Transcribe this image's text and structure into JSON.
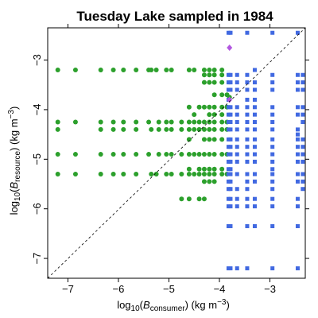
{
  "chart_data": {
    "type": "scatter",
    "title": "Tuesday Lake sampled in 1984",
    "xlabel": {
      "pre": "log",
      "base": "10",
      "open": "(",
      "var": "B",
      "sub": "consumer",
      "close": ")",
      "units": " (kg m",
      "exp": "−3",
      "end": ")"
    },
    "ylabel": {
      "pre": "log",
      "base": "10",
      "open": "(",
      "var": "B",
      "sub": "resource",
      "close": ")",
      "units": " (kg m",
      "exp": "−3",
      "end": ")"
    },
    "xlim": [
      -7.4,
      -2.3
    ],
    "ylim": [
      -7.4,
      -2.35
    ],
    "xticks": [
      -7,
      -6,
      -5,
      -4,
      -3
    ],
    "yticks": [
      -7,
      -6,
      -5,
      -4,
      -3
    ],
    "reference_line": "y = x (dashed)",
    "grid": false,
    "colors": {
      "green": "#2ca02c",
      "blue": "#4169e1",
      "purple": "#b257e0"
    },
    "series": [
      {
        "color": "green",
        "marker": "circle",
        "points": [
          [
            -7.2,
            -3.2
          ],
          [
            -7.2,
            -4.25
          ],
          [
            -7.2,
            -4.4
          ],
          [
            -7.2,
            -4.9
          ],
          [
            -7.2,
            -5.3
          ],
          [
            -6.85,
            -3.2
          ],
          [
            -6.85,
            -4.25
          ],
          [
            -6.85,
            -4.9
          ],
          [
            -6.85,
            -5.3
          ],
          [
            -6.35,
            -3.2
          ],
          [
            -6.35,
            -4.25
          ],
          [
            -6.35,
            -4.4
          ],
          [
            -6.35,
            -4.9
          ],
          [
            -6.35,
            -5.3
          ],
          [
            -6.1,
            -3.2
          ],
          [
            -6.1,
            -4.25
          ],
          [
            -6.1,
            -4.4
          ],
          [
            -6.1,
            -4.9
          ],
          [
            -6.1,
            -5.3
          ],
          [
            -5.9,
            -3.2
          ],
          [
            -5.9,
            -4.25
          ],
          [
            -5.9,
            -4.4
          ],
          [
            -5.9,
            -4.9
          ],
          [
            -5.9,
            -5.3
          ],
          [
            -5.65,
            -3.2
          ],
          [
            -5.65,
            -4.25
          ],
          [
            -5.65,
            -4.4
          ],
          [
            -5.65,
            -4.9
          ],
          [
            -5.65,
            -5.3
          ],
          [
            -5.4,
            -3.2
          ],
          [
            -5.35,
            -3.2
          ],
          [
            -5.4,
            -4.25
          ],
          [
            -5.35,
            -4.4
          ],
          [
            -5.4,
            -4.9
          ],
          [
            -5.35,
            -5.3
          ],
          [
            -5.25,
            -3.2
          ],
          [
            -5.2,
            -4.25
          ],
          [
            -5.2,
            -4.4
          ],
          [
            -5.2,
            -4.9
          ],
          [
            -5.25,
            -5.3
          ],
          [
            -5.05,
            -3.2
          ],
          [
            -5.05,
            -4.25
          ],
          [
            -5.05,
            -4.4
          ],
          [
            -5.05,
            -4.9
          ],
          [
            -5.05,
            -5.3
          ],
          [
            -4.95,
            -3.2
          ],
          [
            -4.95,
            -4.25
          ],
          [
            -4.95,
            -4.4
          ],
          [
            -4.95,
            -4.9
          ],
          [
            -4.95,
            -5.3
          ],
          [
            -4.75,
            -4.25
          ],
          [
            -4.75,
            -4.4
          ],
          [
            -4.75,
            -4.9
          ],
          [
            -4.75,
            -5.3
          ],
          [
            -4.75,
            -5.8
          ],
          [
            -4.6,
            -3.2
          ],
          [
            -4.6,
            -3.95
          ],
          [
            -4.6,
            -4.25
          ],
          [
            -4.6,
            -4.4
          ],
          [
            -4.6,
            -4.6
          ],
          [
            -4.6,
            -4.9
          ],
          [
            -4.6,
            -5.2
          ],
          [
            -4.6,
            -5.3
          ],
          [
            -4.6,
            -5.8
          ],
          [
            -4.5,
            -3.2
          ],
          [
            -4.5,
            -4.1
          ],
          [
            -4.5,
            -4.25
          ],
          [
            -4.5,
            -4.4
          ],
          [
            -4.5,
            -4.9
          ],
          [
            -4.5,
            -5.3
          ],
          [
            -4.4,
            -3.95
          ],
          [
            -4.4,
            -4.25
          ],
          [
            -4.4,
            -4.4
          ],
          [
            -4.4,
            -4.9
          ],
          [
            -4.4,
            -5.2
          ],
          [
            -4.4,
            -5.3
          ],
          [
            -4.4,
            -5.8
          ],
          [
            -4.3,
            -3.2
          ],
          [
            -4.3,
            -3.3
          ],
          [
            -4.3,
            -3.45
          ],
          [
            -4.3,
            -3.95
          ],
          [
            -4.3,
            -4.25
          ],
          [
            -4.3,
            -4.4
          ],
          [
            -4.3,
            -4.6
          ],
          [
            -4.3,
            -4.9
          ],
          [
            -4.3,
            -5.2
          ],
          [
            -4.3,
            -5.3
          ],
          [
            -4.3,
            -5.45
          ],
          [
            -4.3,
            -5.8
          ],
          [
            -4.2,
            -3.2
          ],
          [
            -4.2,
            -3.3
          ],
          [
            -4.2,
            -3.45
          ],
          [
            -4.2,
            -3.95
          ],
          [
            -4.2,
            -4.1
          ],
          [
            -4.2,
            -4.25
          ],
          [
            -4.2,
            -4.4
          ],
          [
            -4.2,
            -4.6
          ],
          [
            -4.2,
            -4.9
          ],
          [
            -4.2,
            -5.2
          ],
          [
            -4.2,
            -5.3
          ],
          [
            -4.2,
            -5.45
          ],
          [
            -4.1,
            -3.2
          ],
          [
            -4.1,
            -3.3
          ],
          [
            -4.1,
            -3.45
          ],
          [
            -4.1,
            -3.7
          ],
          [
            -4.1,
            -3.95
          ],
          [
            -4.1,
            -4.1
          ],
          [
            -4.1,
            -4.25
          ],
          [
            -4.1,
            -4.4
          ],
          [
            -4.1,
            -4.6
          ],
          [
            -4.1,
            -4.9
          ],
          [
            -4.1,
            -5.2
          ],
          [
            -4.1,
            -5.3
          ],
          [
            -4.1,
            -5.45
          ],
          [
            -3.95,
            -3.2
          ],
          [
            -3.95,
            -3.3
          ],
          [
            -3.95,
            -3.45
          ],
          [
            -3.95,
            -3.7
          ],
          [
            -3.95,
            -3.95
          ],
          [
            -3.95,
            -4.1
          ],
          [
            -3.95,
            -4.25
          ],
          [
            -3.95,
            -4.4
          ],
          [
            -3.95,
            -4.6
          ],
          [
            -3.95,
            -4.9
          ],
          [
            -3.95,
            -5.2
          ],
          [
            -3.95,
            -5.3
          ],
          [
            -3.85,
            -3.7
          ],
          [
            -3.85,
            -3.95
          ],
          [
            -3.85,
            -4.25
          ],
          [
            -3.85,
            -4.4
          ],
          [
            -3.85,
            -4.9
          ],
          [
            -3.85,
            -5.3
          ],
          [
            -3.8,
            -3.75
          ]
        ]
      },
      {
        "color": "blue",
        "marker": "square",
        "points": [
          [
            -3.82,
            -2.45
          ],
          [
            -3.82,
            -3.3
          ],
          [
            -3.82,
            -3.45
          ],
          [
            -3.82,
            -3.6
          ],
          [
            -3.82,
            -3.8
          ],
          [
            -3.82,
            -3.95
          ],
          [
            -3.82,
            -4.1
          ],
          [
            -3.82,
            -4.25
          ],
          [
            -3.82,
            -4.4
          ],
          [
            -3.82,
            -4.6
          ],
          [
            -3.82,
            -4.75
          ],
          [
            -3.82,
            -4.9
          ],
          [
            -3.82,
            -5.05
          ],
          [
            -3.82,
            -5.2
          ],
          [
            -3.82,
            -5.3
          ],
          [
            -3.82,
            -5.45
          ],
          [
            -3.82,
            -5.6
          ],
          [
            -3.82,
            -5.8
          ],
          [
            -3.82,
            -5.95
          ],
          [
            -3.82,
            -6.35
          ],
          [
            -3.82,
            -7.2
          ],
          [
            -3.78,
            -2.45
          ],
          [
            -3.78,
            -3.3
          ],
          [
            -3.78,
            -3.45
          ],
          [
            -3.78,
            -3.6
          ],
          [
            -3.78,
            -3.95
          ],
          [
            -3.78,
            -4.1
          ],
          [
            -3.78,
            -4.25
          ],
          [
            -3.78,
            -4.4
          ],
          [
            -3.78,
            -4.6
          ],
          [
            -3.78,
            -4.75
          ],
          [
            -3.78,
            -4.9
          ],
          [
            -3.78,
            -5.05
          ],
          [
            -3.78,
            -5.2
          ],
          [
            -3.78,
            -5.3
          ],
          [
            -3.78,
            -5.45
          ],
          [
            -3.78,
            -5.6
          ],
          [
            -3.78,
            -5.8
          ],
          [
            -3.78,
            -5.95
          ],
          [
            -3.78,
            -6.35
          ],
          [
            -3.78,
            -7.2
          ],
          [
            -3.65,
            -3.3
          ],
          [
            -3.65,
            -3.45
          ],
          [
            -3.65,
            -3.6
          ],
          [
            -3.65,
            -3.95
          ],
          [
            -3.65,
            -4.1
          ],
          [
            -3.65,
            -4.25
          ],
          [
            -3.65,
            -4.4
          ],
          [
            -3.65,
            -4.6
          ],
          [
            -3.65,
            -4.75
          ],
          [
            -3.65,
            -4.9
          ],
          [
            -3.65,
            -5.05
          ],
          [
            -3.65,
            -5.3
          ],
          [
            -3.65,
            -5.6
          ],
          [
            -3.65,
            -5.8
          ],
          [
            -3.65,
            -5.95
          ],
          [
            -3.65,
            -7.2
          ],
          [
            -3.45,
            -2.45
          ],
          [
            -3.45,
            -3.3
          ],
          [
            -3.45,
            -3.45
          ],
          [
            -3.45,
            -3.6
          ],
          [
            -3.45,
            -3.8
          ],
          [
            -3.45,
            -3.95
          ],
          [
            -3.45,
            -4.1
          ],
          [
            -3.45,
            -4.25
          ],
          [
            -3.45,
            -4.4
          ],
          [
            -3.45,
            -4.6
          ],
          [
            -3.45,
            -4.75
          ],
          [
            -3.45,
            -4.9
          ],
          [
            -3.45,
            -5.05
          ],
          [
            -3.45,
            -5.3
          ],
          [
            -3.45,
            -5.45
          ],
          [
            -3.45,
            -5.6
          ],
          [
            -3.45,
            -5.8
          ],
          [
            -3.45,
            -5.95
          ],
          [
            -3.45,
            -6.35
          ],
          [
            -3.45,
            -7.2
          ],
          [
            -3.3,
            -3.2
          ],
          [
            -3.3,
            -3.45
          ],
          [
            -3.3,
            -3.6
          ],
          [
            -3.3,
            -3.8
          ],
          [
            -3.3,
            -3.95
          ],
          [
            -3.3,
            -4.1
          ],
          [
            -3.3,
            -4.25
          ],
          [
            -3.3,
            -4.4
          ],
          [
            -3.3,
            -4.6
          ],
          [
            -3.3,
            -4.75
          ],
          [
            -3.3,
            -4.9
          ],
          [
            -3.3,
            -5.05
          ],
          [
            -3.3,
            -5.3
          ],
          [
            -3.3,
            -5.45
          ],
          [
            -3.3,
            -5.8
          ],
          [
            -3.3,
            -5.95
          ],
          [
            -3.3,
            -6.35
          ],
          [
            -2.95,
            -2.45
          ],
          [
            -2.95,
            -3.3
          ],
          [
            -2.95,
            -3.45
          ],
          [
            -2.95,
            -3.6
          ],
          [
            -2.95,
            -3.95
          ],
          [
            -2.95,
            -4.1
          ],
          [
            -2.95,
            -4.25
          ],
          [
            -2.95,
            -4.4
          ],
          [
            -2.95,
            -4.6
          ],
          [
            -2.95,
            -4.75
          ],
          [
            -2.95,
            -4.9
          ],
          [
            -2.95,
            -5.05
          ],
          [
            -2.95,
            -5.2
          ],
          [
            -2.95,
            -5.3
          ],
          [
            -2.95,
            -5.45
          ],
          [
            -2.95,
            -5.6
          ],
          [
            -2.95,
            -5.8
          ],
          [
            -2.95,
            -5.95
          ],
          [
            -2.95,
            -6.35
          ],
          [
            -2.95,
            -7.2
          ],
          [
            -2.45,
            -2.45
          ],
          [
            -2.45,
            -3.3
          ],
          [
            -2.45,
            -3.45
          ],
          [
            -2.45,
            -3.6
          ],
          [
            -2.45,
            -3.95
          ],
          [
            -2.45,
            -4.1
          ],
          [
            -2.45,
            -4.4
          ],
          [
            -2.45,
            -4.5
          ],
          [
            -2.45,
            -4.6
          ],
          [
            -2.45,
            -4.75
          ],
          [
            -2.45,
            -4.9
          ],
          [
            -2.45,
            -5.05
          ],
          [
            -2.45,
            -5.3
          ],
          [
            -2.45,
            -5.45
          ],
          [
            -2.45,
            -5.8
          ],
          [
            -2.45,
            -5.95
          ],
          [
            -2.45,
            -6.35
          ],
          [
            -2.45,
            -7.2
          ],
          [
            -2.35,
            -3.3
          ],
          [
            -2.35,
            -3.45
          ],
          [
            -2.35,
            -3.6
          ],
          [
            -2.35,
            -3.95
          ],
          [
            -2.35,
            -4.1
          ],
          [
            -2.35,
            -4.25
          ],
          [
            -2.35,
            -4.6
          ],
          [
            -2.35,
            -4.75
          ],
          [
            -2.35,
            -4.9
          ],
          [
            -2.35,
            -5.05
          ],
          [
            -2.35,
            -5.3
          ],
          [
            -2.35,
            -5.45
          ],
          [
            -2.35,
            -5.6
          ]
        ]
      },
      {
        "color": "purple",
        "marker": "diamond",
        "points": [
          [
            -3.8,
            -2.75
          ],
          [
            -3.8,
            -3.8
          ]
        ]
      }
    ]
  }
}
